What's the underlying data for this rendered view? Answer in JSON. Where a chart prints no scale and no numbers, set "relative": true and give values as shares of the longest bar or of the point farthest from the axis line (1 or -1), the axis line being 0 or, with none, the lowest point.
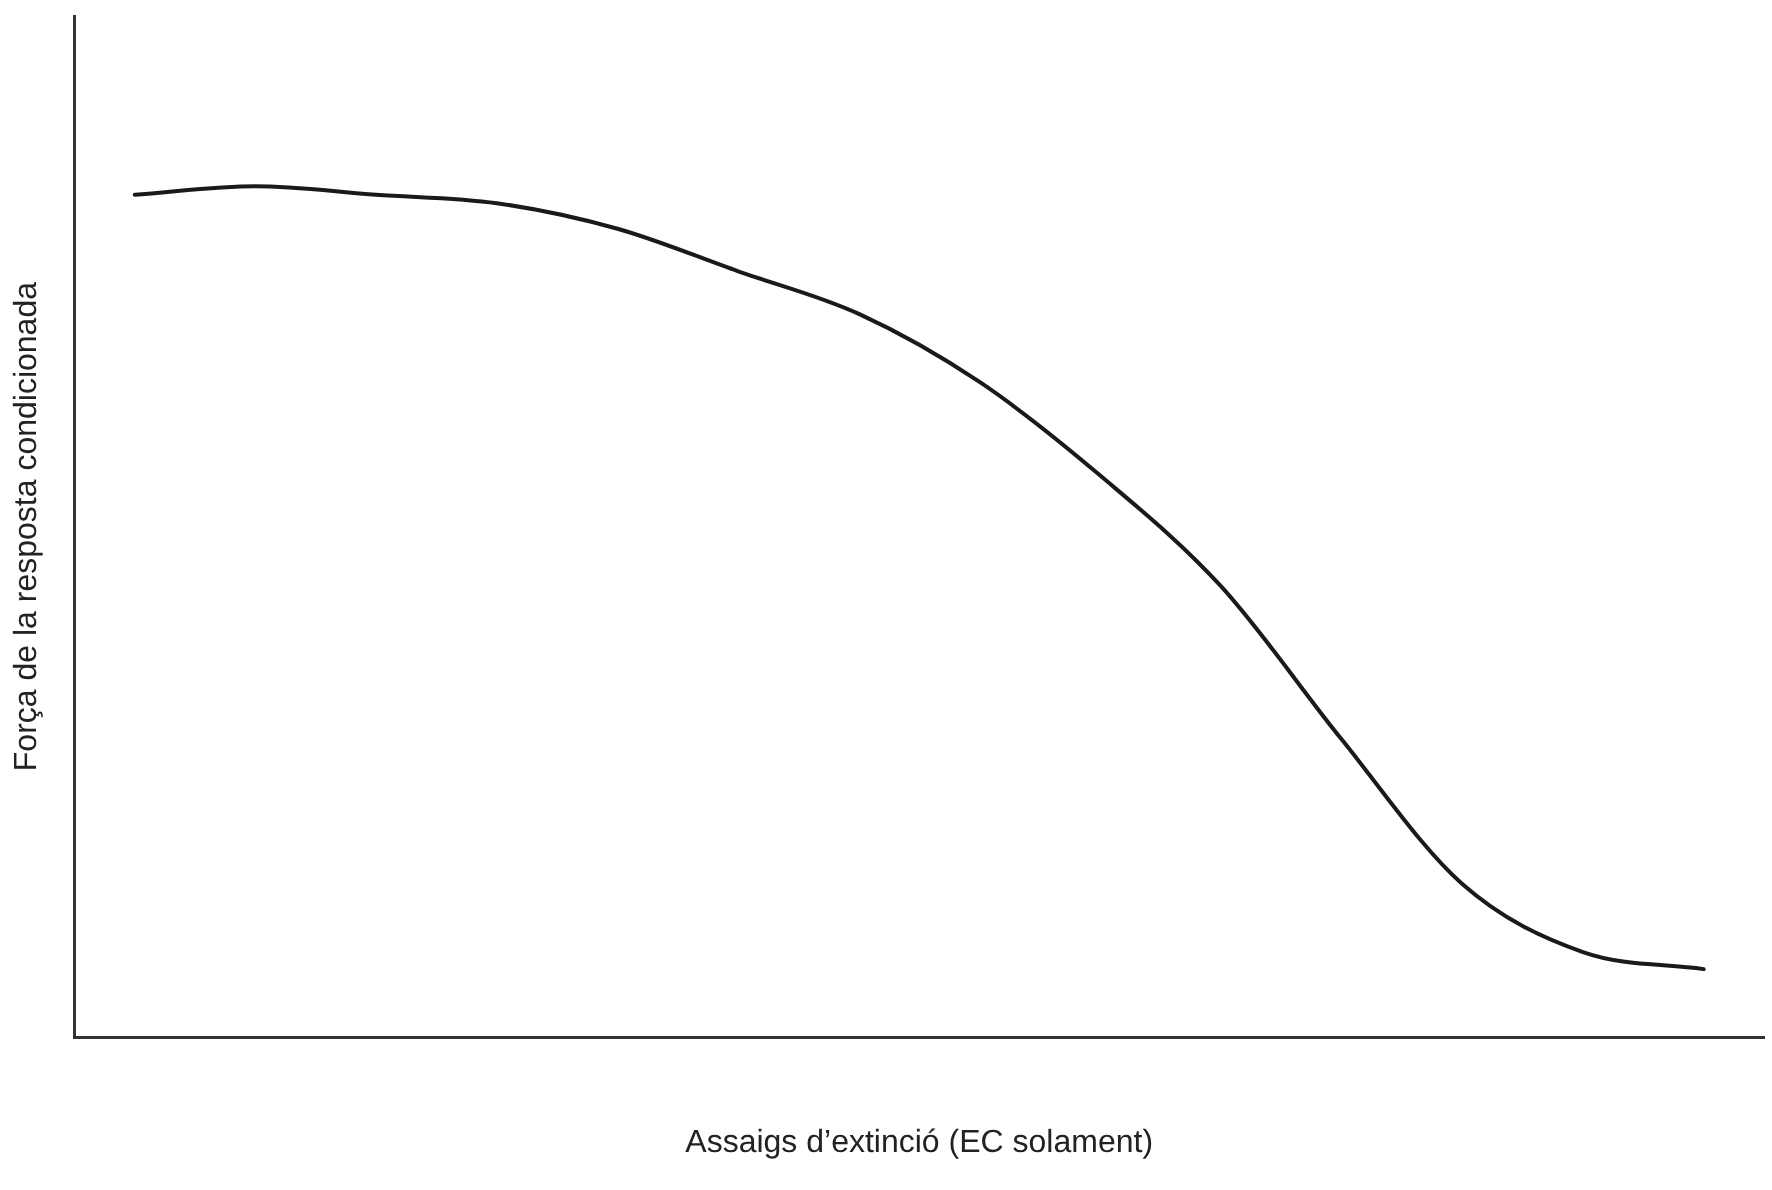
{
  "chart_data": {
    "type": "line",
    "xlabel": "Assaigs d’extinció (EC solament)",
    "ylabel": "Força de la resposta condicionada",
    "relative": true,
    "categories": [
      null,
      null,
      null,
      null,
      null,
      null,
      null,
      null,
      null,
      null,
      null,
      null,
      null,
      null
    ],
    "series": [
      {
        "color": "#1a1a1a",
        "values": [
          0.99,
          1,
          0.99,
          0.98,
          0.95,
          0.9,
          0.85,
          0.77,
          0.66,
          0.53,
          0.35,
          0.18,
          0.1,
          0.08
        ]
      }
    ],
    "grid": false,
    "legend": false,
    "marker": "none",
    "line_style": "solid"
  }
}
